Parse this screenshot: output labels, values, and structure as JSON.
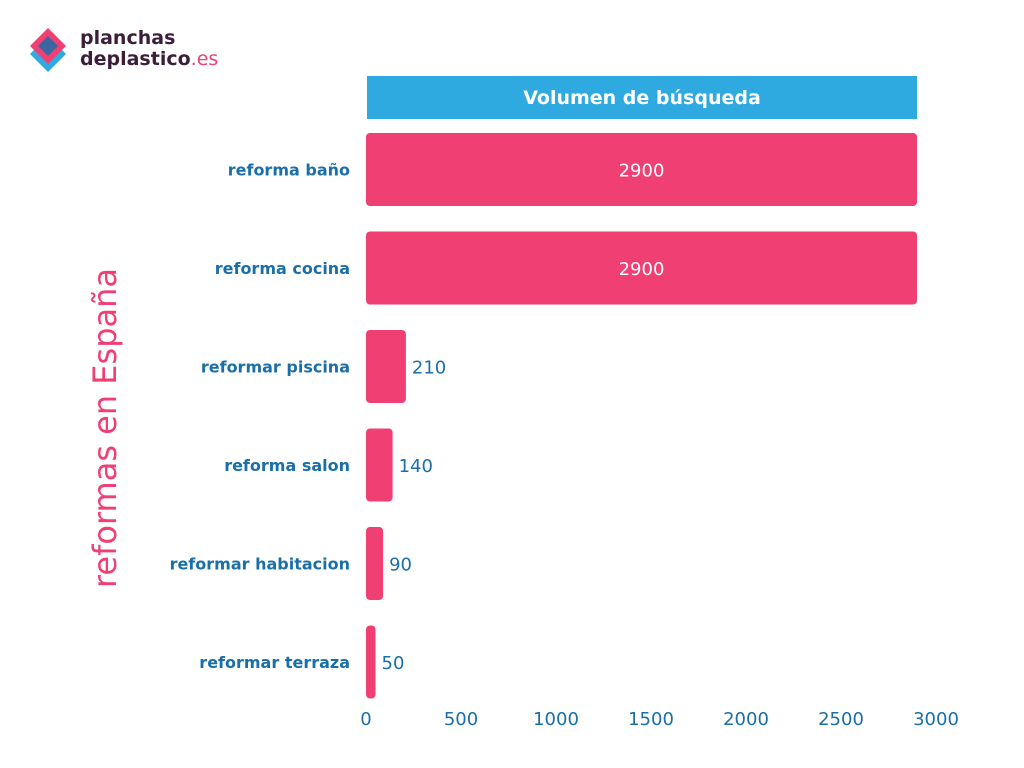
{
  "logo": {
    "line1": "planchas",
    "line2": "deplastico",
    "tld": ".es"
  },
  "side_title": "reformas en España",
  "chart_data": {
    "type": "bar",
    "orientation": "horizontal",
    "title": "Volumen de búsqueda",
    "categories": [
      "reforma baño",
      "reforma cocina",
      "reformar piscina",
      "reforma salon",
      "reformar habitacion",
      "reformar terraza"
    ],
    "values": [
      2900,
      2900,
      210,
      140,
      90,
      50
    ],
    "data_labels": [
      "2900",
      "2900",
      "210",
      "140",
      "90",
      "50"
    ],
    "xlim": [
      0,
      3000
    ],
    "x_ticks": [
      0,
      500,
      1000,
      1500,
      2000,
      2500,
      3000
    ],
    "grid": false,
    "legend": "none"
  },
  "colors": {
    "bar": "#ef3f73",
    "header": "#2eaae1",
    "category_label": "#1a6fa8",
    "tick_label": "#1a6fa8",
    "value_label_outside": "#1a6fa8",
    "value_label_inside": "#ffffff",
    "logo_dark": "#3b1e3a",
    "logo_pink": "#ef3f73",
    "logo_blue": "#2eaae1"
  }
}
